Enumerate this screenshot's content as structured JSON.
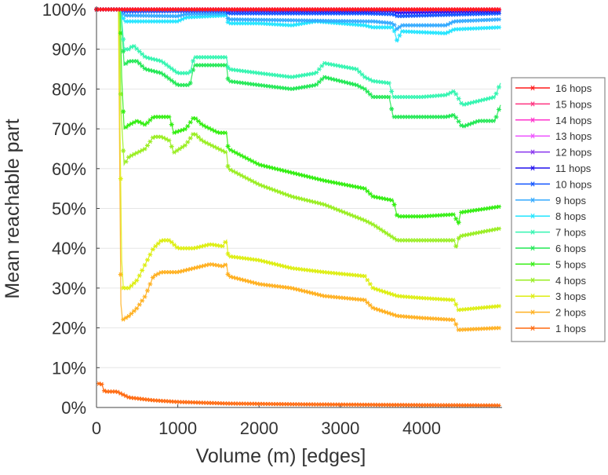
{
  "chart_data": {
    "type": "line",
    "title": "",
    "xlabel": "Volume (m) [edges]",
    "ylabel": "Mean reachable part",
    "xlim": [
      0,
      4970
    ],
    "ylim": [
      0,
      100
    ],
    "xticks": [
      0,
      1000,
      2000,
      3000,
      4000
    ],
    "xtick_labels": [
      "0",
      "1000",
      "2000",
      "3000",
      "4000"
    ],
    "yticks": [
      0,
      10,
      20,
      30,
      40,
      50,
      60,
      70,
      80,
      90,
      100
    ],
    "ytick_labels": [
      "0%",
      "10%",
      "20%",
      "30%",
      "40%",
      "50%",
      "60%",
      "70%",
      "80%",
      "90%",
      "100%"
    ],
    "grid": "horizontal",
    "legend_position": "right",
    "series": [
      {
        "name": "16 hops",
        "color": "#ff1a1a",
        "points": [
          [
            0,
            100
          ],
          [
            4970,
            100
          ]
        ]
      },
      {
        "name": "15 hops",
        "color": "#ff3380",
        "points": [
          [
            0,
            100
          ],
          [
            4970,
            100
          ]
        ]
      },
      {
        "name": "14 hops",
        "color": "#ff33cc",
        "points": [
          [
            0,
            100
          ],
          [
            4970,
            100
          ]
        ]
      },
      {
        "name": "13 hops",
        "color": "#ee55ff",
        "points": [
          [
            0,
            100
          ],
          [
            4970,
            100
          ]
        ]
      },
      {
        "name": "12 hops",
        "color": "#8833ee",
        "points": [
          [
            0,
            100
          ],
          [
            300,
            100
          ],
          [
            3650,
            100
          ],
          [
            3700,
            99.8
          ],
          [
            4970,
            100
          ]
        ]
      },
      {
        "name": "11 hops",
        "color": "#2211ee",
        "points": [
          [
            0,
            100
          ],
          [
            300,
            100
          ],
          [
            1600,
            100
          ],
          [
            1620,
            99.7
          ],
          [
            3650,
            99.6
          ],
          [
            3700,
            99.2
          ],
          [
            4970,
            99.6
          ]
        ]
      },
      {
        "name": "10 hops",
        "color": "#1155ff",
        "points": [
          [
            0,
            100
          ],
          [
            300,
            100
          ],
          [
            340,
            99.5
          ],
          [
            1600,
            99.6
          ],
          [
            1620,
            99
          ],
          [
            3300,
            99
          ],
          [
            3650,
            98.8
          ],
          [
            3700,
            98.3
          ],
          [
            4970,
            99
          ]
        ]
      },
      {
        "name": "9 hops",
        "color": "#33aaff",
        "points": [
          [
            0,
            100
          ],
          [
            300,
            100
          ],
          [
            340,
            98.5
          ],
          [
            1000,
            98.3
          ],
          [
            1100,
            98.8
          ],
          [
            1600,
            99
          ],
          [
            1620,
            97.5
          ],
          [
            3300,
            97
          ],
          [
            3400,
            97
          ],
          [
            3650,
            96.5
          ],
          [
            3700,
            95
          ],
          [
            3750,
            96
          ],
          [
            4300,
            96
          ],
          [
            4400,
            97
          ],
          [
            4970,
            97.5
          ]
        ]
      },
      {
        "name": "8 hops",
        "color": "#22e5ff",
        "points": [
          [
            0,
            100
          ],
          [
            300,
            100
          ],
          [
            340,
            97
          ],
          [
            1000,
            97
          ],
          [
            1100,
            98
          ],
          [
            1600,
            98.5
          ],
          [
            1620,
            96.5
          ],
          [
            2000,
            96.5
          ],
          [
            2400,
            96
          ],
          [
            2700,
            97
          ],
          [
            3300,
            96
          ],
          [
            3400,
            95.5
          ],
          [
            3650,
            95.5
          ],
          [
            3700,
            92
          ],
          [
            3750,
            94.5
          ],
          [
            4300,
            94
          ],
          [
            4400,
            95
          ],
          [
            4970,
            95.5
          ]
        ]
      },
      {
        "name": "7 hops",
        "color": "#33f5b0",
        "points": [
          [
            0,
            100
          ],
          [
            300,
            100
          ],
          [
            340,
            90
          ],
          [
            400,
            90
          ],
          [
            450,
            91
          ],
          [
            600,
            88
          ],
          [
            800,
            87
          ],
          [
            1000,
            84
          ],
          [
            1150,
            84
          ],
          [
            1200,
            88
          ],
          [
            1600,
            88
          ],
          [
            1620,
            85
          ],
          [
            2000,
            84
          ],
          [
            2400,
            83
          ],
          [
            2700,
            84
          ],
          [
            2800,
            86.5
          ],
          [
            3200,
            85
          ],
          [
            3300,
            83
          ],
          [
            3400,
            82
          ],
          [
            3600,
            81.5
          ],
          [
            3650,
            78
          ],
          [
            4000,
            78
          ],
          [
            4300,
            78.5
          ],
          [
            4400,
            79.5
          ],
          [
            4500,
            76
          ],
          [
            4700,
            77
          ],
          [
            4900,
            78
          ],
          [
            4970,
            81.5
          ]
        ]
      },
      {
        "name": "6 hops",
        "color": "#22e855",
        "points": [
          [
            0,
            100
          ],
          [
            300,
            100
          ],
          [
            340,
            86
          ],
          [
            400,
            87
          ],
          [
            500,
            87
          ],
          [
            600,
            85
          ],
          [
            800,
            84
          ],
          [
            1000,
            81
          ],
          [
            1150,
            81
          ],
          [
            1200,
            86
          ],
          [
            1600,
            86
          ],
          [
            1620,
            82
          ],
          [
            2000,
            81
          ],
          [
            2400,
            80
          ],
          [
            2700,
            81
          ],
          [
            2800,
            83
          ],
          [
            3200,
            81
          ],
          [
            3300,
            80
          ],
          [
            3400,
            78
          ],
          [
            3600,
            78
          ],
          [
            3650,
            73
          ],
          [
            4000,
            73
          ],
          [
            4300,
            73
          ],
          [
            4400,
            73.5
          ],
          [
            4500,
            70.5
          ],
          [
            4700,
            72
          ],
          [
            4900,
            72
          ],
          [
            4970,
            76
          ]
        ]
      },
      {
        "name": "5 hops",
        "color": "#33ee11",
        "points": [
          [
            0,
            100
          ],
          [
            290,
            100
          ],
          [
            310,
            83
          ],
          [
            340,
            70
          ],
          [
            400,
            71
          ],
          [
            500,
            72
          ],
          [
            600,
            71
          ],
          [
            700,
            73
          ],
          [
            900,
            73
          ],
          [
            950,
            69
          ],
          [
            1100,
            70
          ],
          [
            1200,
            73
          ],
          [
            1300,
            71
          ],
          [
            1500,
            69
          ],
          [
            1600,
            69
          ],
          [
            1620,
            65
          ],
          [
            2000,
            61
          ],
          [
            2400,
            59
          ],
          [
            2800,
            57
          ],
          [
            3300,
            55
          ],
          [
            3400,
            53
          ],
          [
            3650,
            52
          ],
          [
            3700,
            48
          ],
          [
            4000,
            48
          ],
          [
            4400,
            48.5
          ],
          [
            4450,
            46
          ],
          [
            4480,
            49
          ],
          [
            4970,
            50.5
          ]
        ]
      },
      {
        "name": "4 hops",
        "color": "#99ee22",
        "points": [
          [
            0,
            100
          ],
          [
            280,
            100
          ],
          [
            300,
            75
          ],
          [
            340,
            61
          ],
          [
            400,
            63
          ],
          [
            500,
            64
          ],
          [
            600,
            65
          ],
          [
            700,
            68
          ],
          [
            800,
            68
          ],
          [
            900,
            67
          ],
          [
            950,
            64
          ],
          [
            1100,
            66
          ],
          [
            1200,
            69
          ],
          [
            1300,
            67
          ],
          [
            1500,
            65
          ],
          [
            1600,
            64
          ],
          [
            1620,
            60
          ],
          [
            2000,
            56
          ],
          [
            2400,
            53
          ],
          [
            2800,
            51
          ],
          [
            3300,
            47
          ],
          [
            3400,
            46
          ],
          [
            3700,
            42
          ],
          [
            4000,
            42
          ],
          [
            4400,
            42
          ],
          [
            4430,
            40
          ],
          [
            4460,
            43
          ],
          [
            4970,
            45
          ]
        ]
      },
      {
        "name": "3 hops",
        "color": "#ddee11",
        "points": [
          [
            0,
            100
          ],
          [
            270,
            100
          ],
          [
            310,
            37
          ],
          [
            330,
            30
          ],
          [
            400,
            30
          ],
          [
            500,
            32
          ],
          [
            600,
            36
          ],
          [
            700,
            40
          ],
          [
            800,
            42
          ],
          [
            900,
            42
          ],
          [
            1000,
            40
          ],
          [
            1200,
            40
          ],
          [
            1400,
            41
          ],
          [
            1550,
            40.5
          ],
          [
            1600,
            42
          ],
          [
            1620,
            38
          ],
          [
            2000,
            37
          ],
          [
            2400,
            35
          ],
          [
            2800,
            34
          ],
          [
            3300,
            33
          ],
          [
            3400,
            30
          ],
          [
            3700,
            28
          ],
          [
            4000,
            27.5
          ],
          [
            4400,
            27
          ],
          [
            4450,
            24.5
          ],
          [
            4970,
            25.5
          ]
        ]
      },
      {
        "name": "2 hops",
        "color": "#ffb020",
        "points": [
          [
            0,
            100
          ],
          [
            270,
            100
          ],
          [
            300,
            26
          ],
          [
            320,
            22
          ],
          [
            400,
            23
          ],
          [
            500,
            25
          ],
          [
            600,
            28
          ],
          [
            700,
            33
          ],
          [
            800,
            34
          ],
          [
            1000,
            34
          ],
          [
            1200,
            35
          ],
          [
            1400,
            36
          ],
          [
            1550,
            35.5
          ],
          [
            1600,
            36
          ],
          [
            1620,
            33
          ],
          [
            2000,
            31
          ],
          [
            2400,
            30
          ],
          [
            2800,
            28
          ],
          [
            3300,
            27
          ],
          [
            3400,
            25
          ],
          [
            3700,
            23
          ],
          [
            4000,
            22.5
          ],
          [
            4400,
            22
          ],
          [
            4450,
            19.5
          ],
          [
            4970,
            20
          ]
        ]
      },
      {
        "name": "1 hops",
        "color": "#ff6a10",
        "points": [
          [
            30,
            6
          ],
          [
            60,
            6
          ],
          [
            100,
            4
          ],
          [
            250,
            4
          ],
          [
            400,
            2.5
          ],
          [
            700,
            1.8
          ],
          [
            1000,
            1.4
          ],
          [
            1600,
            1
          ],
          [
            2500,
            0.8
          ],
          [
            4000,
            0.6
          ],
          [
            4970,
            0.5
          ]
        ]
      }
    ]
  }
}
